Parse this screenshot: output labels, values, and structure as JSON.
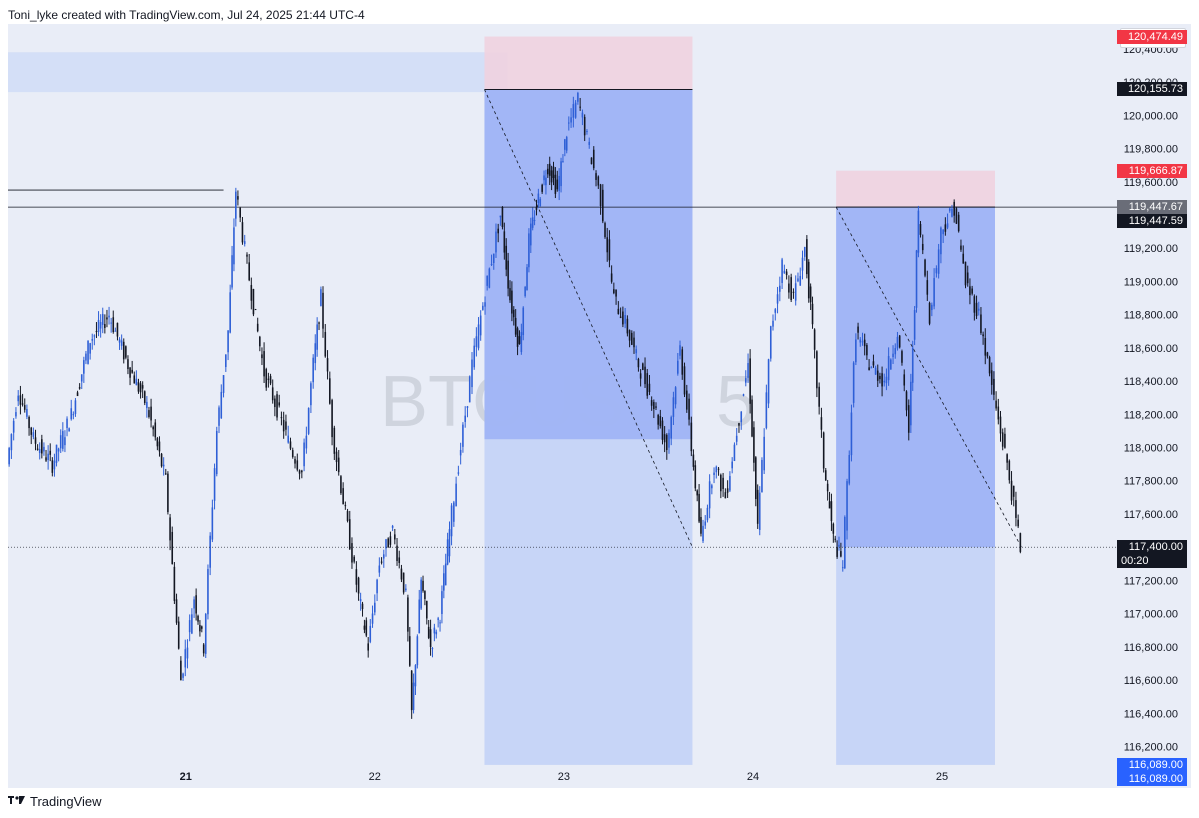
{
  "header": {
    "text": "Toni_lyke created with TradingView.com, Jul 24, 2025 21:44 UTC-4"
  },
  "footer": {
    "brand": "TradingView",
    "logo": "tradingview-logo-icon"
  },
  "currency": "USD",
  "watermark": "BTCUSD, 5",
  "colors": {
    "background": "#e9edf7",
    "candle": "#2e5fd6",
    "candle_dark": "#131722",
    "target_zone": "#9db3f5",
    "target_zone_light": "#c3d1f6",
    "stop_zone": "#efd1df",
    "red_tag": "#f23645",
    "blue_tag": "#2962ff",
    "dark_tag": "#131722"
  },
  "price_tags": [
    {
      "label": "120,474.49",
      "value": 120474.49,
      "style": "red"
    },
    {
      "label": "120,155.73",
      "value": 120155.73,
      "style": "dark"
    },
    {
      "label": "119,666.87",
      "value": 119666.87,
      "style": "red"
    },
    {
      "label": "119,447.67",
      "value": 119447.67,
      "style": "gray"
    },
    {
      "label": "119,447.59",
      "value": 119447.59,
      "style": "dark"
    },
    {
      "label": "117,400.00",
      "sublabel": "00:20",
      "value": 117400.0,
      "style": "dark"
    },
    {
      "label": "116,089.00",
      "value": 116089.0,
      "style": "blue"
    },
    {
      "label": "116,089.00",
      "value": 116089.0,
      "style": "blue"
    }
  ],
  "chart_data": {
    "type": "candlestick",
    "symbol": "BTCUSD",
    "interval": "5",
    "y_ticks": [
      116200,
      116400,
      116600,
      116800,
      117000,
      117200,
      117400,
      117600,
      117800,
      118000,
      118200,
      118400,
      118600,
      118800,
      119000,
      119200,
      119400,
      119600,
      119800,
      120000,
      120200,
      120400
    ],
    "y_tick_labels": [
      "116,200.00",
      "116,400.00",
      "116,600.00",
      "116,800.00",
      "117,000.00",
      "117,200.00",
      "117,400.00",
      "117,600.00",
      "117,800.00",
      "118,000.00",
      "118,200.00",
      "118,400.00",
      "118,600.00",
      "118,800.00",
      "119,000.00",
      "119,200.00",
      "119,400.00",
      "119,600.00",
      "119,800.00",
      "120,000.00",
      "120,200.00",
      "120,400.00"
    ],
    "ylim": [
      115950,
      120550
    ],
    "x_labels": [
      {
        "label": "21",
        "day": 21,
        "bold": true
      },
      {
        "label": "22",
        "day": 22
      },
      {
        "label": "23",
        "day": 23
      },
      {
        "label": "24",
        "day": 24
      },
      {
        "label": "25",
        "day": 25
      }
    ],
    "xlim": [
      20.06,
      25.92
    ],
    "path": [
      [
        20.06,
        117900
      ],
      [
        20.12,
        118350
      ],
      [
        20.2,
        118050
      ],
      [
        20.3,
        117900
      ],
      [
        20.4,
        118200
      ],
      [
        20.5,
        118650
      ],
      [
        20.6,
        118800
      ],
      [
        20.7,
        118500
      ],
      [
        20.8,
        118250
      ],
      [
        20.9,
        117800
      ],
      [
        20.98,
        116600
      ],
      [
        21.05,
        117100
      ],
      [
        21.1,
        116800
      ],
      [
        21.17,
        118100
      ],
      [
        21.23,
        118700
      ],
      [
        21.27,
        119550
      ],
      [
        21.33,
        119100
      ],
      [
        21.42,
        118450
      ],
      [
        21.5,
        118200
      ],
      [
        21.56,
        118000
      ],
      [
        21.62,
        117850
      ],
      [
        21.68,
        118500
      ],
      [
        21.72,
        118900
      ],
      [
        21.78,
        118100
      ],
      [
        21.85,
        117600
      ],
      [
        21.92,
        117100
      ],
      [
        21.97,
        116800
      ],
      [
        22.03,
        117300
      ],
      [
        22.1,
        117500
      ],
      [
        22.17,
        117100
      ],
      [
        22.2,
        116400
      ],
      [
        22.25,
        117200
      ],
      [
        22.3,
        116800
      ],
      [
        22.35,
        117000
      ],
      [
        22.4,
        117500
      ],
      [
        22.46,
        118000
      ],
      [
        22.52,
        118500
      ],
      [
        22.6,
        119000
      ],
      [
        22.67,
        119400
      ],
      [
        22.72,
        118900
      ],
      [
        22.77,
        118600
      ],
      [
        22.82,
        119250
      ],
      [
        22.87,
        119500
      ],
      [
        22.92,
        119700
      ],
      [
        22.97,
        119550
      ],
      [
        23.02,
        119900
      ],
      [
        23.08,
        120100
      ],
      [
        23.14,
        119800
      ],
      [
        23.2,
        119500
      ],
      [
        23.27,
        118900
      ],
      [
        23.33,
        118750
      ],
      [
        23.4,
        118500
      ],
      [
        23.47,
        118300
      ],
      [
        23.55,
        118000
      ],
      [
        23.62,
        118600
      ],
      [
        23.68,
        118000
      ],
      [
        23.73,
        117450
      ],
      [
        23.8,
        117900
      ],
      [
        23.86,
        117700
      ],
      [
        23.92,
        118100
      ],
      [
        23.98,
        118500
      ],
      [
        24.03,
        117500
      ],
      [
        24.1,
        118700
      ],
      [
        24.16,
        119100
      ],
      [
        24.22,
        118900
      ],
      [
        24.28,
        119200
      ],
      [
        24.32,
        118700
      ],
      [
        24.38,
        117900
      ],
      [
        24.43,
        117450
      ],
      [
        24.48,
        117300
      ],
      [
        24.55,
        118700
      ],
      [
        24.62,
        118500
      ],
      [
        24.7,
        118400
      ],
      [
        24.77,
        118700
      ],
      [
        24.83,
        118100
      ],
      [
        24.88,
        119400
      ],
      [
        24.94,
        118800
      ],
      [
        25.0,
        119300
      ],
      [
        25.07,
        119450
      ],
      [
        25.13,
        119000
      ],
      [
        25.2,
        118800
      ],
      [
        25.28,
        118300
      ],
      [
        25.35,
        117900
      ],
      [
        25.42,
        117400
      ]
    ],
    "positions": [
      {
        "name": "short-1",
        "start": 22.58,
        "end": 23.68,
        "entry": 120155.73,
        "stop": 120474.49,
        "target": 116089.0,
        "fill_to": 118050
      },
      {
        "name": "short-2",
        "start": 24.44,
        "end": 25.28,
        "entry": 119447.59,
        "stop": 119666.87,
        "target": 116089.0,
        "fill_to": 117400
      }
    ],
    "zones": [
      {
        "name": "upper-band",
        "start": 20.06,
        "end": 22.7,
        "high": 120380,
        "low": 120140
      }
    ],
    "levels": [
      {
        "name": "resistance-line",
        "value": 119447.59,
        "start": 20.06
      },
      {
        "name": "short-level-line",
        "value": 119550,
        "start": 20.06,
        "end": 21.2
      }
    ],
    "current_price": 117400.0,
    "current_time_label": "00:20"
  }
}
